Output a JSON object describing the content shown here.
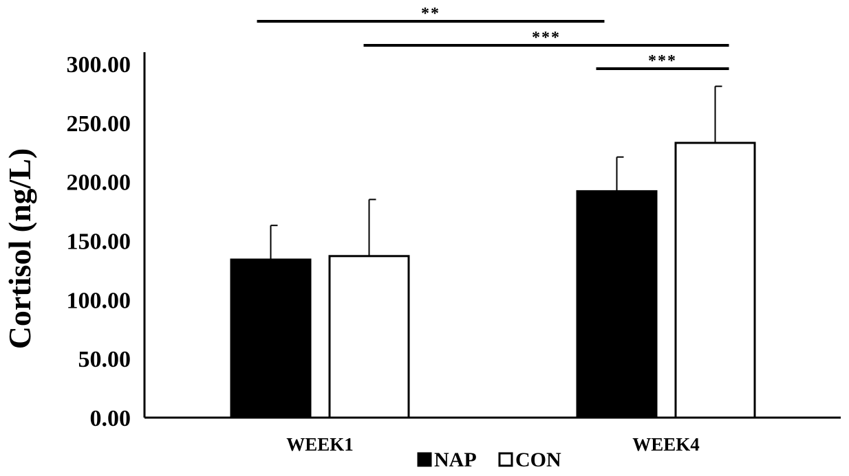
{
  "chart_data": {
    "type": "bar",
    "title": "",
    "xlabel": "",
    "ylabel": "Cortisol (ng/L)",
    "categories": [
      "WEEK1",
      "WEEK4"
    ],
    "series": [
      {
        "name": "NAP",
        "values": [
          134.0,
          192.0
        ],
        "errors": [
          29.0,
          29.0
        ],
        "fill": "#000000",
        "stroke": "#000000"
      },
      {
        "name": "CON",
        "values": [
          137.0,
          233.0
        ],
        "errors": [
          48.0,
          48.0
        ],
        "fill": "#ffffff",
        "stroke": "#000000"
      }
    ],
    "ylim": [
      0,
      300
    ],
    "yticks": [
      0,
      50,
      100,
      150,
      200,
      250,
      300
    ],
    "ytick_labels": [
      "0.00",
      "50.00",
      "100.00",
      "150.00",
      "200.00",
      "250.00",
      "300.00"
    ],
    "grid": false,
    "legend": {
      "placement": "bottom-center",
      "entries": [
        "NAP",
        "CON"
      ]
    },
    "significance": [
      {
        "label": "**",
        "from": {
          "category": "WEEK1",
          "series": "NAP"
        },
        "to": {
          "category": "WEEK4",
          "series": "NAP"
        }
      },
      {
        "label": "***",
        "from": {
          "category": "WEEK1",
          "series": "CON"
        },
        "to": {
          "category": "WEEK4",
          "series": "CON"
        }
      },
      {
        "label": "***",
        "from": {
          "category": "WEEK4",
          "series": "NAP"
        },
        "to": {
          "category": "WEEK4",
          "series": "CON"
        }
      }
    ]
  }
}
